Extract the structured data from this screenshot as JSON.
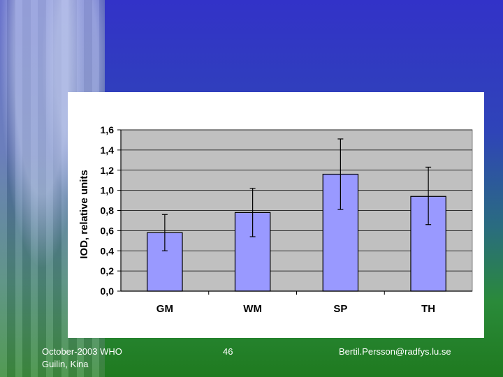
{
  "footer": {
    "left_line1": "October-2003 WHO",
    "left_line2": "Guilin, Kina",
    "page_number": "46",
    "email": "Bertil.Persson@radfys.lu.se"
  },
  "chart_data": {
    "type": "bar",
    "categories": [
      "GM",
      "WM",
      "SP",
      "TH"
    ],
    "values": [
      0.58,
      0.78,
      1.16,
      0.94
    ],
    "error_low": [
      0.4,
      0.54,
      0.81,
      0.66
    ],
    "error_high": [
      0.76,
      1.02,
      1.51,
      1.23
    ],
    "ylabel": "IOD, relative units",
    "ylim": [
      0,
      1.6
    ],
    "yticks": [
      0,
      0.2,
      0.4,
      0.6,
      0.8,
      1.0,
      1.2,
      1.4,
      1.6
    ],
    "ytick_labels": [
      "0,0",
      "0,2",
      "0,4",
      "0,6",
      "0,8",
      "1,0",
      "1,2",
      "1,4",
      "1,6"
    ],
    "grid": true,
    "bar_color": "#9999ff",
    "plot_bg": "#c0c0c0"
  }
}
